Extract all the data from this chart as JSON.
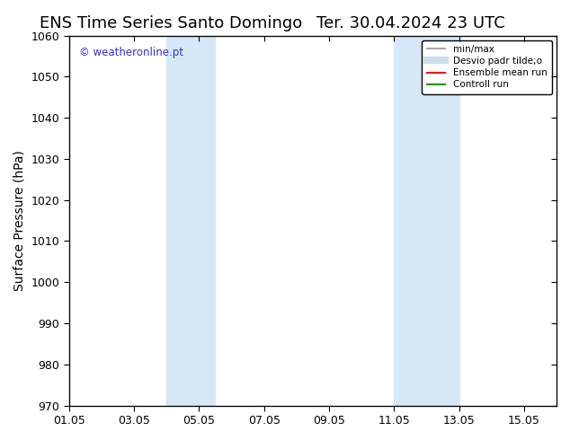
{
  "title_left": "ENS Time Series Santo Domingo",
  "title_right": "Ter. 30.04.2024 23 UTC",
  "ylabel": "Surface Pressure (hPa)",
  "ylim": [
    970,
    1060
  ],
  "yticks": [
    970,
    980,
    990,
    1000,
    1010,
    1020,
    1030,
    1040,
    1050,
    1060
  ],
  "xlim_start": "2024-05-01",
  "xlim_end": "2024-05-16",
  "xtick_labels": [
    "01.05",
    "03.05",
    "05.05",
    "07.05",
    "09.05",
    "11.05",
    "13.05",
    "15.05"
  ],
  "xtick_positions": [
    1,
    3,
    5,
    7,
    9,
    11,
    13,
    15
  ],
  "shaded_bands": [
    {
      "xmin": 4.0,
      "xmax": 5.5
    },
    {
      "xmin": 11.0,
      "xmax": 13.0
    }
  ],
  "shaded_color": "#d6e8f7",
  "background_color": "#ffffff",
  "watermark_text": "© weatheronline.pt",
  "watermark_color": "#3333cc",
  "legend_items": [
    {
      "label": "min/max",
      "color": "#aaaaaa",
      "lw": 1.5,
      "ls": "-"
    },
    {
      "label": "Desvio padr tilde;o",
      "color": "#ccddee",
      "lw": 6,
      "ls": "-"
    },
    {
      "label": "Ensemble mean run",
      "color": "#ff0000",
      "lw": 1.5,
      "ls": "-"
    },
    {
      "label": "Controll run",
      "color": "#009900",
      "lw": 1.5,
      "ls": "-"
    }
  ],
  "title_fontsize": 13,
  "tick_fontsize": 9,
  "ylabel_fontsize": 10
}
